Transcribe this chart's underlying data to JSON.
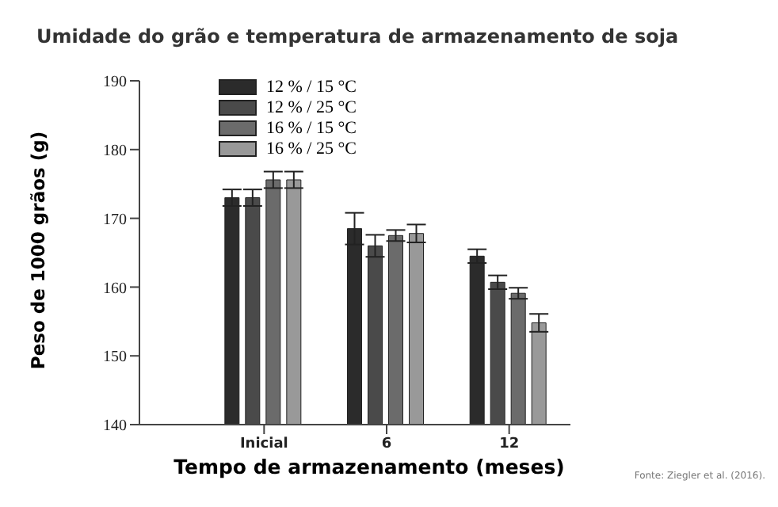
{
  "chart_data": {
    "type": "bar",
    "title": "Umidade do grão e temperatura de armazenamento de soja",
    "xlabel": "Tempo de armazenamento (meses)",
    "ylabel": "Peso de 1000 grãos (g)",
    "annotations": [
      "Fonte: Ziegler et al. (2016)."
    ],
    "categories": [
      "Inicial",
      "6",
      "12"
    ],
    "series": [
      {
        "name": "12 % / 15 °C",
        "color": "#2b2b2b",
        "values": [
          173,
          168.5,
          164.5
        ],
        "errors": [
          1.2,
          2.3,
          1
        ]
      },
      {
        "name": "12 % / 25 °C",
        "color": "#4a4a4a",
        "values": [
          173,
          166,
          160.7
        ],
        "errors": [
          1.2,
          1.6,
          1
        ]
      },
      {
        "name": "16 % / 15 °C",
        "color": "#6b6b6b",
        "values": [
          175.6,
          167.5,
          159.1
        ],
        "errors": [
          1.2,
          0.8,
          0.8
        ]
      },
      {
        "name": "16 % / 25 °C",
        "color": "#999999",
        "values": [
          175.6,
          167.8,
          154.8
        ],
        "errors": [
          1.2,
          1.3,
          1.3
        ]
      }
    ],
    "ylim": [
      140,
      190
    ],
    "yticks": [
      140,
      150,
      160,
      170,
      180,
      190
    ],
    "grid": false,
    "legend": "top left"
  }
}
